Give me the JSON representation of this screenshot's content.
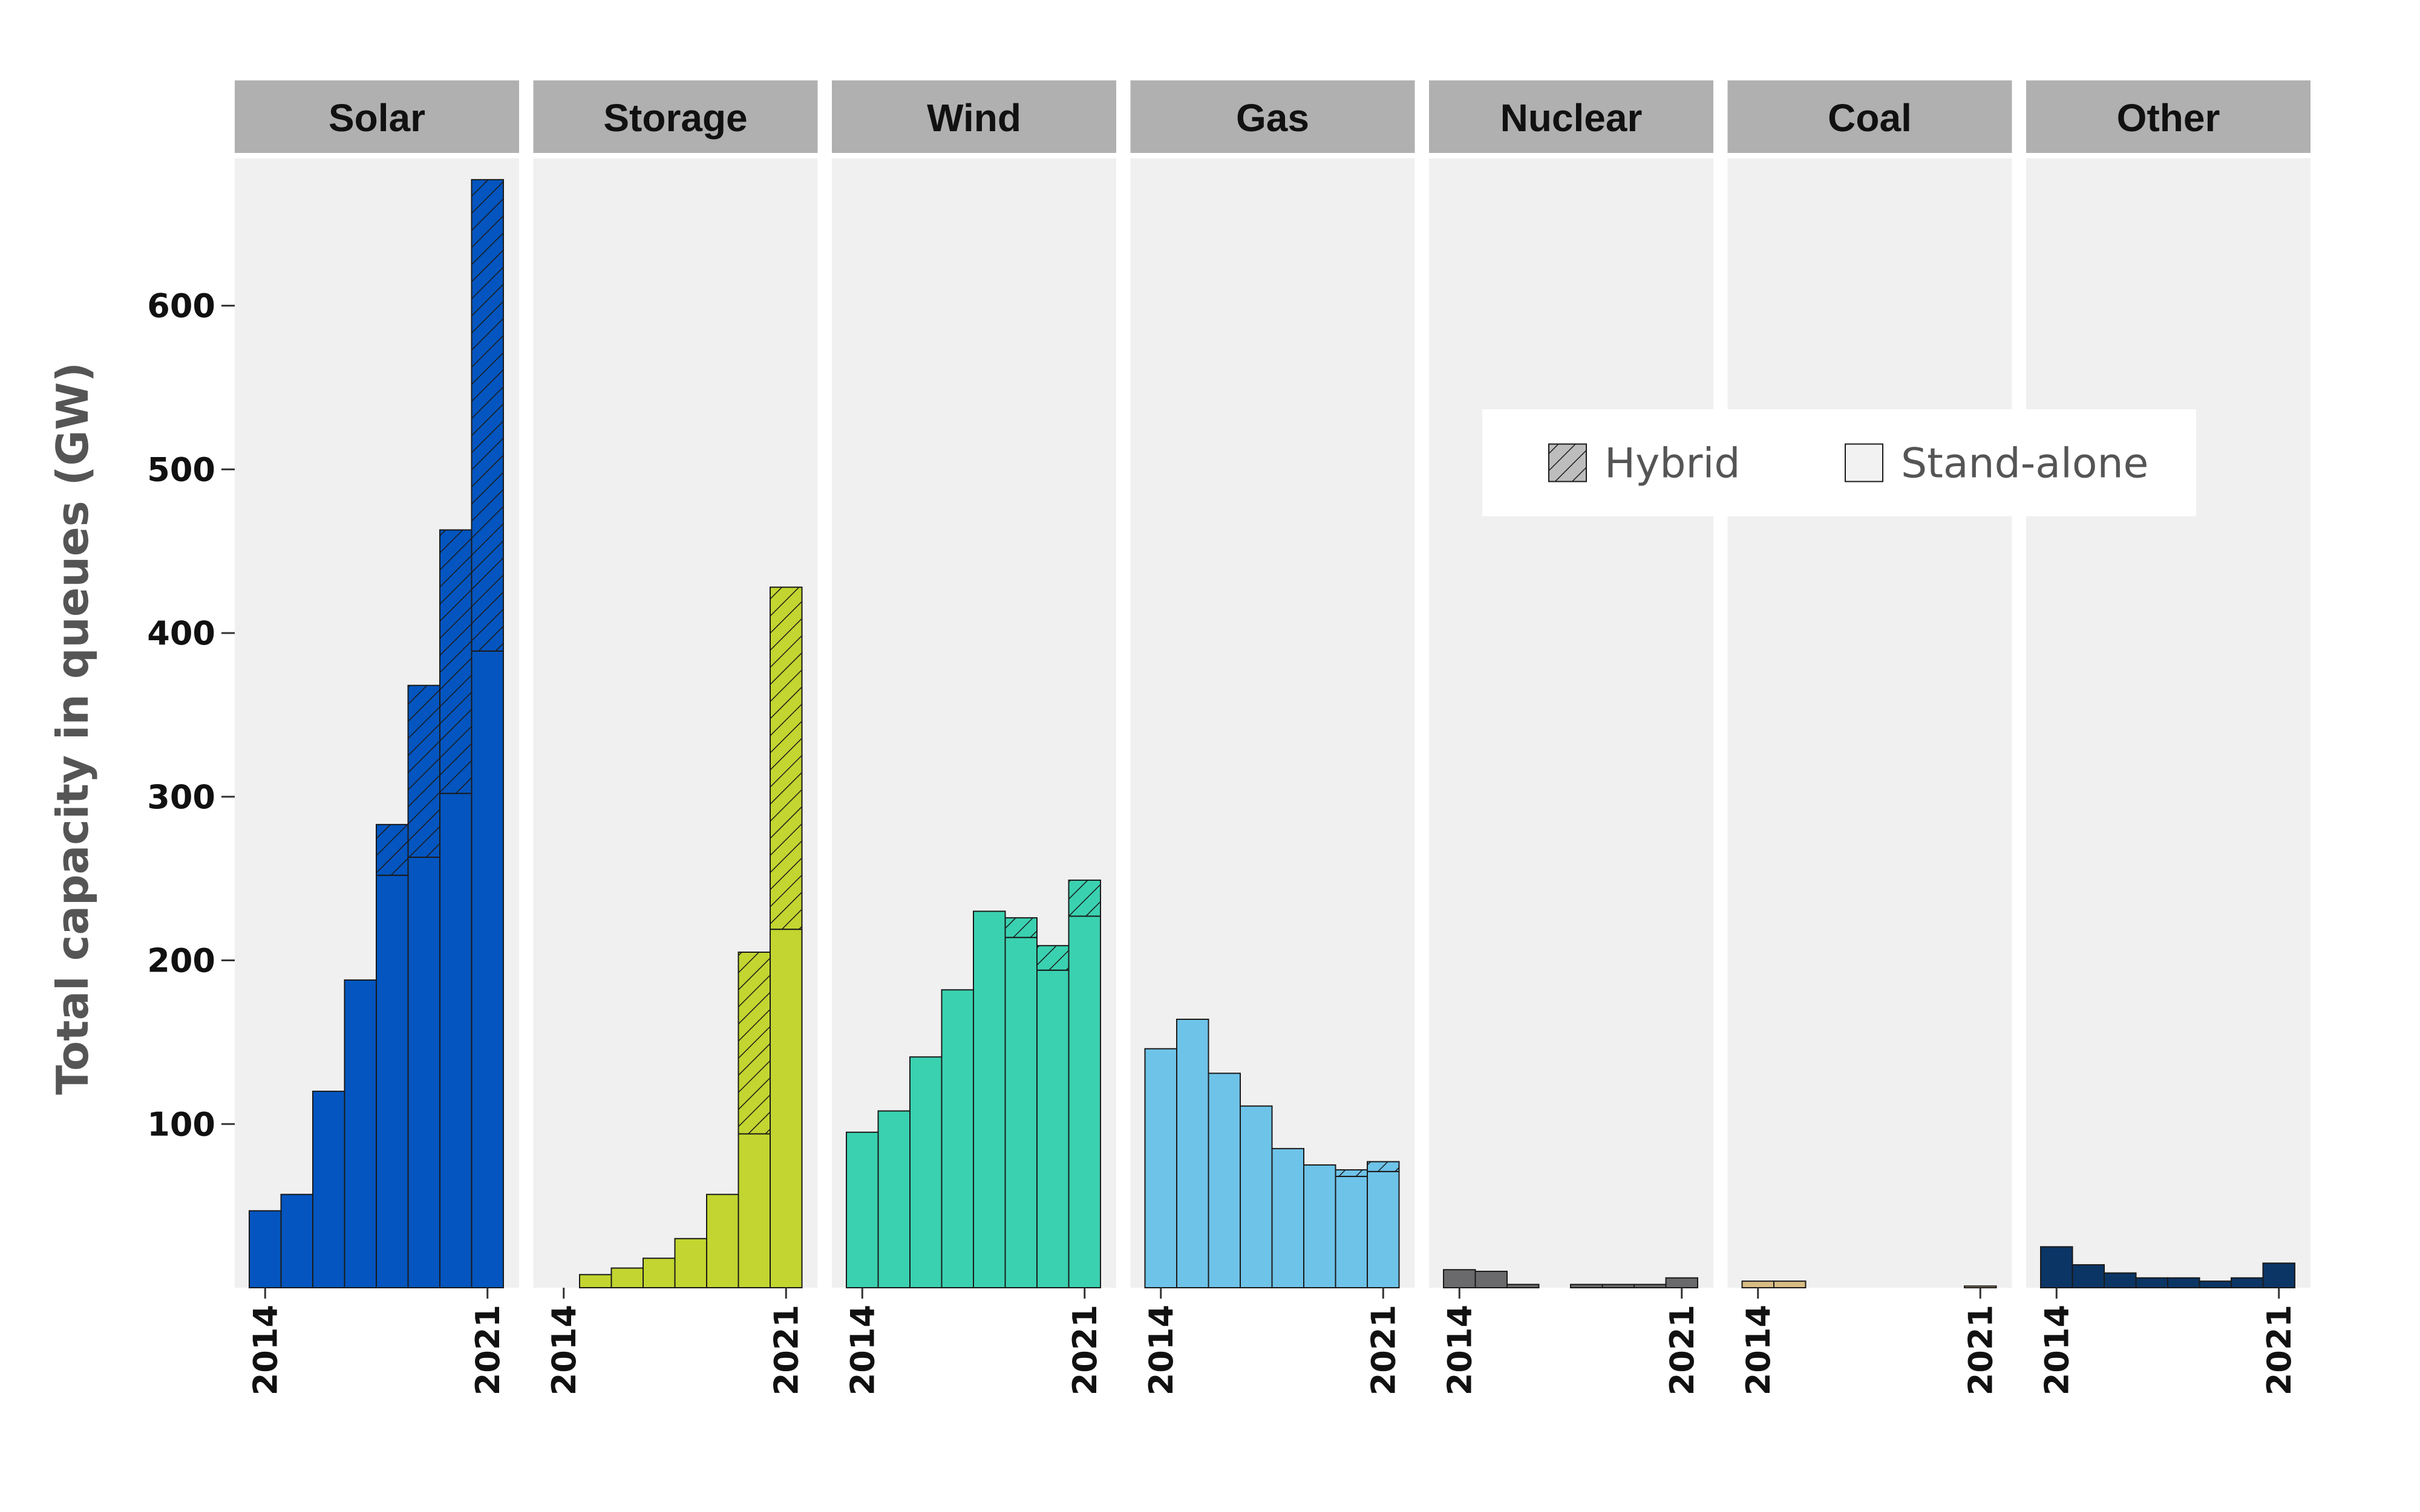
{
  "chart_data": {
    "type": "bar",
    "layout": "faceted-stacked",
    "ylabel": "Total capacity in queues (GW)",
    "xlabel": "",
    "ylim": [
      0,
      690
    ],
    "yticks": [
      100,
      200,
      300,
      400,
      500,
      600
    ],
    "years": [
      2014,
      2015,
      2016,
      2017,
      2018,
      2019,
      2020,
      2021
    ],
    "xtick_labels": [
      "2014",
      "2021"
    ],
    "legend": {
      "position": "top-right",
      "items": [
        {
          "label": "Hybrid",
          "pattern": "hatched"
        },
        {
          "label": "Stand-alone",
          "pattern": "solid"
        }
      ]
    },
    "panels": [
      {
        "label": "Solar",
        "color": "#0455BF",
        "standalone": [
          47,
          57,
          120,
          188,
          252,
          263,
          302,
          389
        ],
        "hybrid": [
          0,
          0,
          0,
          0,
          31,
          105,
          161,
          288
        ]
      },
      {
        "label": "Storage",
        "color": "#C2D530",
        "standalone": [
          0,
          8,
          12,
          18,
          30,
          57,
          94,
          219
        ],
        "hybrid": [
          0,
          0,
          0,
          0,
          0,
          0,
          111,
          209
        ]
      },
      {
        "label": "Wind",
        "color": "#3AD1B0",
        "standalone": [
          95,
          108,
          141,
          182,
          230,
          214,
          194,
          227
        ],
        "hybrid": [
          0,
          0,
          0,
          0,
          0,
          12,
          15,
          22
        ]
      },
      {
        "label": "Gas",
        "color": "#6EC3E8",
        "standalone": [
          146,
          164,
          131,
          111,
          85,
          75,
          68,
          71
        ],
        "hybrid": [
          0,
          0,
          0,
          0,
          0,
          0,
          4,
          6
        ]
      },
      {
        "label": "Nuclear",
        "color": "#6A6A6C",
        "standalone": [
          11,
          10,
          2,
          0,
          2,
          2,
          2,
          6
        ],
        "hybrid": [
          0,
          0,
          0,
          0,
          0,
          0,
          0,
          0
        ]
      },
      {
        "label": "Coal",
        "color": "#D8BC84",
        "standalone": [
          4,
          4,
          0,
          0,
          0,
          0,
          0,
          1
        ],
        "hybrid": [
          0,
          0,
          0,
          0,
          0,
          0,
          0,
          0
        ]
      },
      {
        "label": "Other",
        "color": "#0B3565",
        "standalone": [
          25,
          14,
          9,
          6,
          6,
          4,
          6,
          15
        ],
        "hybrid": [
          0,
          0,
          0,
          0,
          0,
          0,
          0,
          0
        ]
      }
    ]
  }
}
